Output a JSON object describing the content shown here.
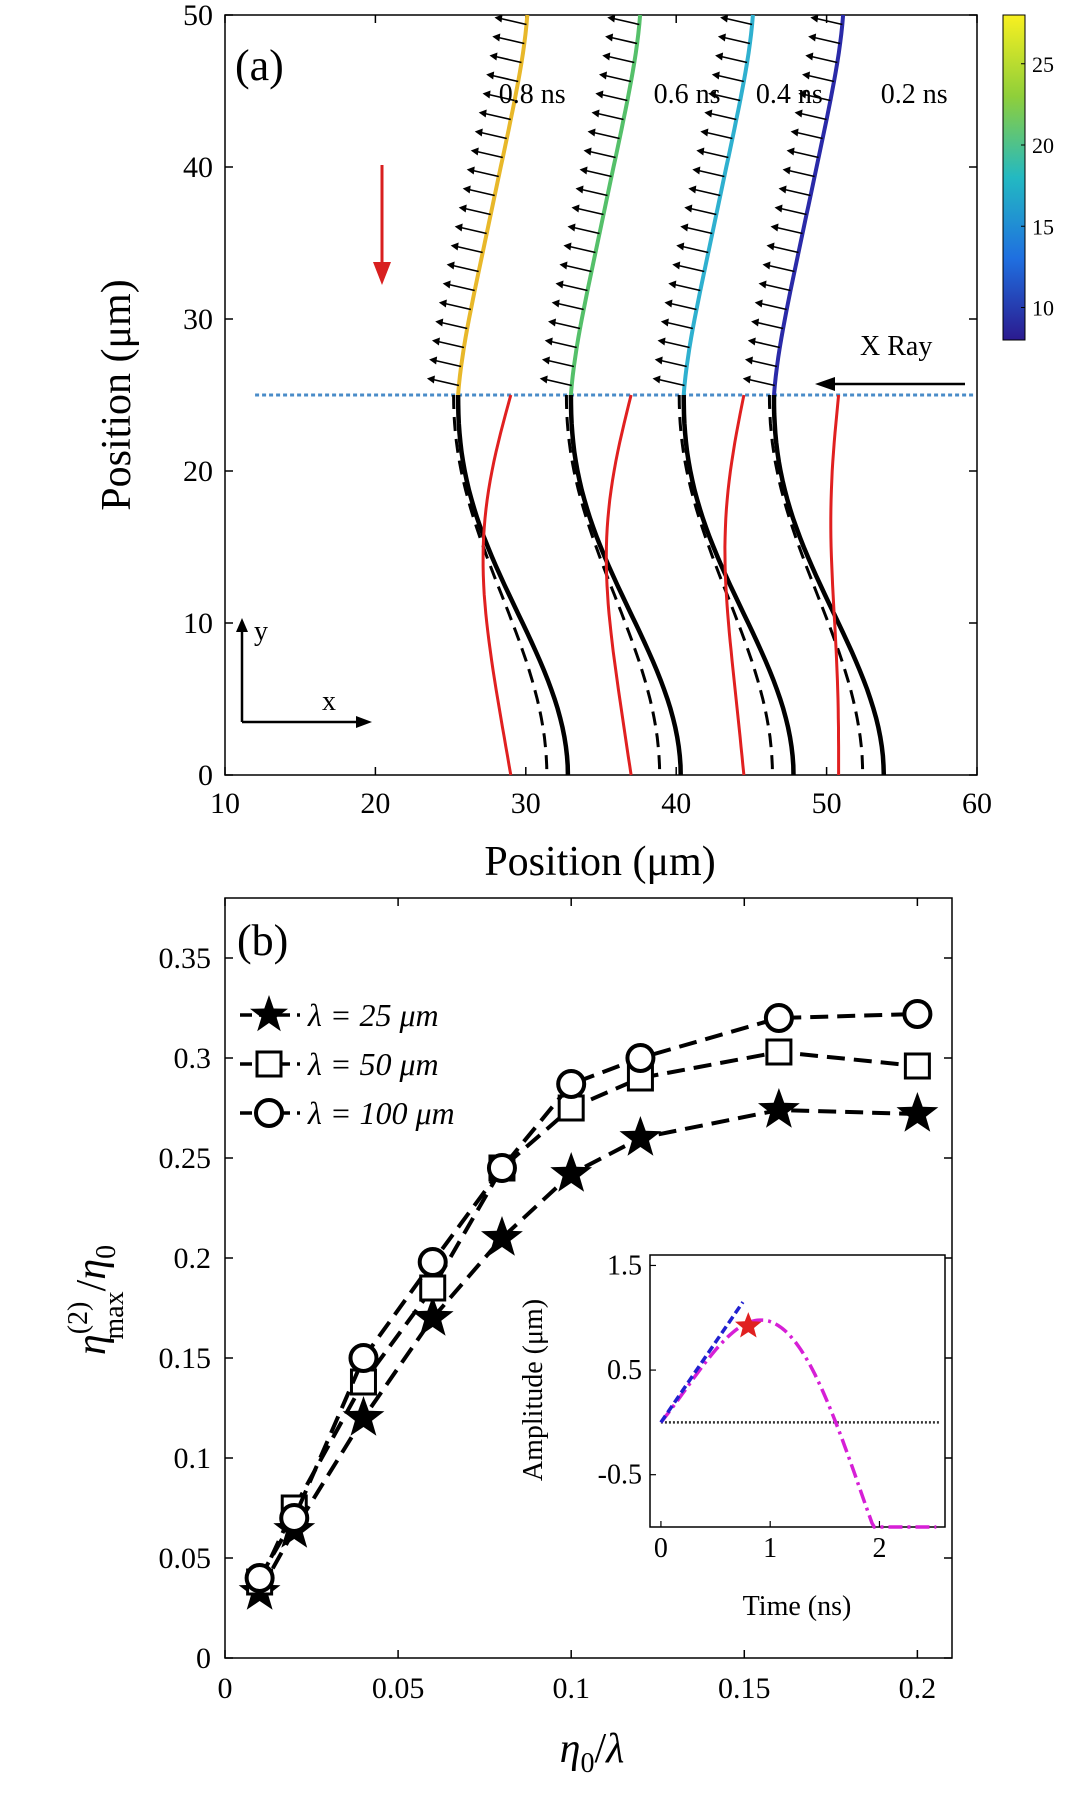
{
  "chart_data": [
    {
      "panel": "(a)",
      "type": "line",
      "xlabel": "Position (μm)",
      "ylabel": "Position (μm)",
      "xlim": [
        10,
        60
      ],
      "ylim": [
        0,
        50
      ],
      "xticks": [
        "10",
        "20",
        "30",
        "40",
        "50",
        "60"
      ],
      "yticks": [
        "0",
        "10",
        "20",
        "30",
        "40",
        "50"
      ],
      "series": [
        {
          "name": "0.2 ns",
          "x0": 46.5,
          "top_color": "#2a2aa8",
          "red_x": 50.8,
          "red_amp": 0.4
        },
        {
          "name": "0.4 ns",
          "x0": 40.5,
          "top_color": "#2fb0cf",
          "red_x": 44.5,
          "red_amp": 1.2
        },
        {
          "name": "0.6 ns",
          "x0": 33.0,
          "top_color": "#55c06a",
          "red_x": 37.0,
          "red_amp": 1.6
        },
        {
          "name": "0.8 ns",
          "x0": 25.5,
          "top_color": "#e8b82a",
          "red_x": 29.0,
          "red_amp": 1.8
        }
      ],
      "interface_y": 25,
      "annotations": {
        "xray": "X Ray",
        "axis_y": "y",
        "axis_x": "x"
      },
      "colorbar": {
        "ticks": [
          "10",
          "15",
          "20",
          "25"
        ],
        "range": [
          8,
          28
        ]
      }
    },
    {
      "panel": "(b)",
      "type": "line",
      "xlabel": "η0/λ",
      "ylabel": "η(2)max/η0",
      "xlim": [
        0,
        0.21
      ],
      "ylim": [
        0,
        0.38
      ],
      "xticks": [
        "0",
        "0.05",
        "0.1",
        "0.15",
        "0.2"
      ],
      "yticks": [
        "0",
        "0.05",
        "0.1",
        "0.15",
        "0.2",
        "0.25",
        "0.3",
        "0.35"
      ],
      "x": [
        0.01,
        0.02,
        0.04,
        0.06,
        0.08,
        0.1,
        0.12,
        0.16,
        0.2
      ],
      "series": [
        {
          "name": "λ = 25 μm",
          "marker": "star",
          "values": [
            0.033,
            0.064,
            0.12,
            0.17,
            0.21,
            0.242,
            0.26,
            0.274,
            0.272
          ]
        },
        {
          "name": "λ = 50 μm",
          "marker": "square",
          "values": [
            0.038,
            0.075,
            0.138,
            0.185,
            0.245,
            0.275,
            0.29,
            0.303,
            0.296
          ]
        },
        {
          "name": "λ = 100 μm",
          "marker": "circle",
          "values": [
            0.04,
            0.07,
            0.15,
            0.198,
            0.245,
            0.287,
            0.3,
            0.32,
            0.322
          ]
        }
      ],
      "inset": {
        "xlabel": "Time (ns)",
        "ylabel": "Amplitude (μm)",
        "xlim": [
          -0.1,
          2.6
        ],
        "ylim": [
          -1.0,
          1.6
        ],
        "xticks": [
          "0",
          "1",
          "2"
        ],
        "yticks": [
          "-0.5",
          "0.5",
          "1.5"
        ],
        "star_point": [
          0.8,
          0.92
        ]
      }
    }
  ]
}
